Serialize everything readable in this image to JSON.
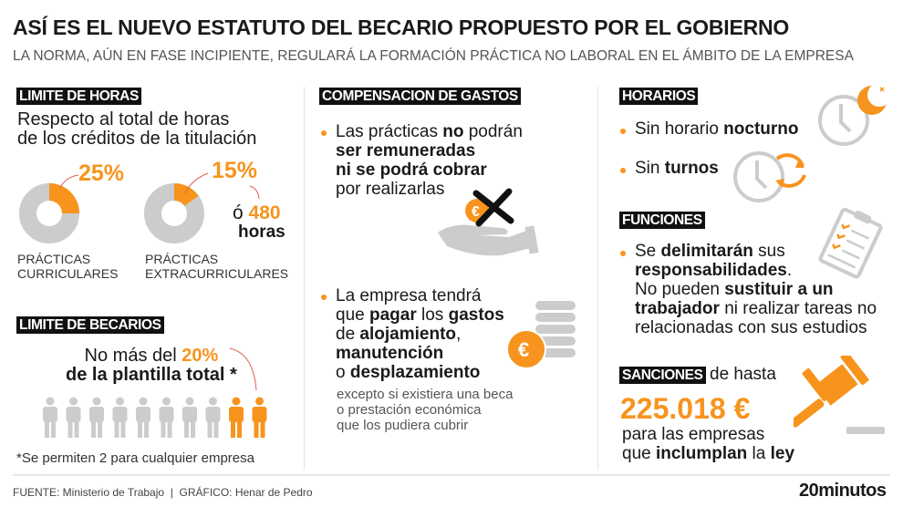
{
  "header": {
    "title": "ASÍ ES EL NUEVO ESTATUTO DEL BECARIO PROPUESTO POR EL GOBIERNO",
    "subtitle": "LA NORMA, AÚN EN FASE INCIPIENTE, REGULARÁ LA FORMACIÓN PRÁCTICA NO LABORAL EN EL ÁMBITO DE LA EMPRESA"
  },
  "colors": {
    "accent": "#f7941d",
    "neutral": "#cccccc",
    "label_bg": "#111111"
  },
  "limite_horas": {
    "label": "LIMITE DE HORAS",
    "intro": [
      [
        {
          "text": "Respecto al total de horas"
        }
      ],
      [
        {
          "text": "de los créditos de la titulación"
        }
      ]
    ],
    "donuts": [
      {
        "percent": 25,
        "value_label": "25%",
        "caption": [
          "PRÁCTICAS",
          "CURRICULARES"
        ]
      },
      {
        "percent": 15,
        "value_label": "15%",
        "caption": [
          "PRÁCTICAS",
          "EXTRACURRICULARES"
        ]
      }
    ],
    "alt_prefix": "ó",
    "alt_value": "480",
    "alt_unit": "horas"
  },
  "limite_becarios": {
    "label": "LIMITE DE BECARIOS",
    "text": [
      [
        {
          "text": "No más del "
        },
        {
          "text": "20%",
          "style": "o"
        }
      ],
      [
        {
          "text": "de la plantilla total *",
          "style": "b"
        }
      ]
    ],
    "people_total": 10,
    "people_highlighted": 2,
    "footnote": "*Se permiten 2 para cualquier empresa"
  },
  "compensacion": {
    "label": "COMPENSACION DE GASTOS",
    "item1": [
      [
        {
          "text": "Las prácticas "
        },
        {
          "text": "no",
          "style": "b"
        },
        {
          "text": " podrán"
        }
      ],
      [
        {
          "text": "ser remuneradas",
          "style": "b"
        }
      ],
      [
        {
          "text": "ni se podrá cobrar",
          "style": "b"
        }
      ],
      [
        {
          "text": "por realizarlas"
        }
      ]
    ],
    "item2": [
      [
        {
          "text": "La empresa tendrá"
        }
      ],
      [
        {
          "text": "que "
        },
        {
          "text": "pagar",
          "style": "b"
        },
        {
          "text": " los "
        },
        {
          "text": "gastos",
          "style": "b"
        }
      ],
      [
        {
          "text": "de "
        },
        {
          "text": "alojamiento",
          "style": "b"
        },
        {
          "text": ","
        }
      ],
      [
        {
          "text": "manutención",
          "style": "b"
        }
      ],
      [
        {
          "text": "o "
        },
        {
          "text": "desplazamiento",
          "style": "b"
        }
      ]
    ],
    "note": [
      "excepto si existiera una beca",
      "o prestación económica",
      "que los pudiera cubrir"
    ],
    "euro_symbol": "€"
  },
  "horarios": {
    "label": "HORARIOS",
    "item1": [
      [
        {
          "text": "Sin horario "
        },
        {
          "text": "nocturno",
          "style": "b"
        }
      ]
    ],
    "item2": [
      [
        {
          "text": "Sin "
        },
        {
          "text": "turnos",
          "style": "b"
        }
      ]
    ]
  },
  "funciones": {
    "label": "FUNCIONES",
    "text": [
      [
        {
          "text": "Se "
        },
        {
          "text": "delimitarán",
          "style": "b"
        },
        {
          "text": " sus"
        }
      ],
      [
        {
          "text": "responsabilidades",
          "style": "b"
        },
        {
          "text": "."
        }
      ],
      [
        {
          "text": "No pueden "
        },
        {
          "text": "sustituir a un",
          "style": "b"
        }
      ],
      [
        {
          "text": "trabajador",
          "style": "b"
        },
        {
          "text": " ni realizar tareas no"
        }
      ],
      [
        {
          "text": "relacionadas con sus estudios"
        }
      ]
    ]
  },
  "sanciones": {
    "label": "SANCIONES",
    "suffix": "de hasta",
    "amount": "225.018 €",
    "text": [
      [
        {
          "text": "para las empresas"
        }
      ],
      [
        {
          "text": "que "
        },
        {
          "text": "inclumplan",
          "style": "b"
        },
        {
          "text": " la "
        },
        {
          "text": "ley",
          "style": "b"
        }
      ]
    ]
  },
  "footer": {
    "credits": "FUENTE: Ministerio de Trabajo  |  GRÁFICO: Henar de Pedro",
    "logo": "20minutos"
  }
}
